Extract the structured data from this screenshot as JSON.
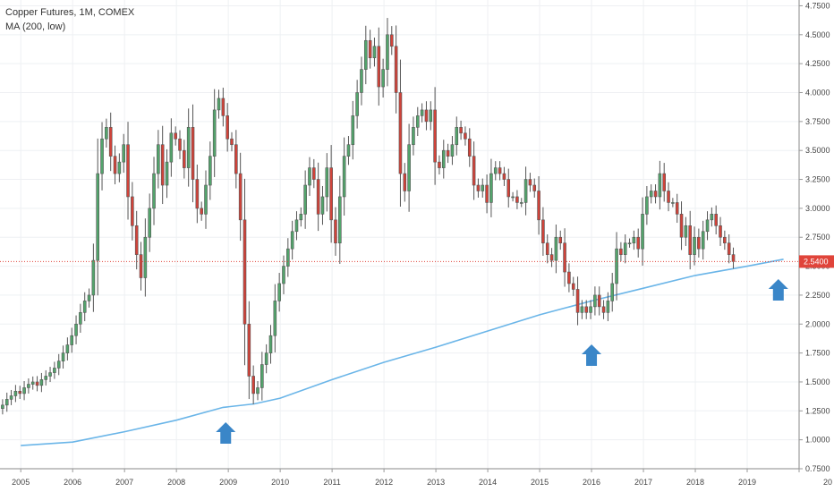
{
  "legend": {
    "symbol_line": "Copper Futures, 1M, COMEX",
    "indicator_line": "MA (200, low)"
  },
  "colors": {
    "up": "#53a46c",
    "down": "#d0433a",
    "ma": "#6ab5e8",
    "last_price_line": "#e0443a",
    "arrow": "#3a86c8",
    "grid": "#eef0f3"
  },
  "icons": [
    "up-arrow-icon",
    "up-arrow-icon",
    "up-arrow-icon"
  ],
  "chart_data": {
    "type": "candlestick",
    "title": "Copper Futures, 1M, COMEX",
    "indicator": "MA (200, low)",
    "ylim": [
      0.75,
      4.8
    ],
    "xlim": [
      2004.6,
      2020.0
    ],
    "grid": true,
    "last_price": 2.54,
    "last_price_label": "2.5400",
    "y_ticks": [
      "4.7500",
      "4.5000",
      "4.2500",
      "4.0000",
      "3.7500",
      "3.5000",
      "3.2500",
      "3.0000",
      "2.7500",
      "2.5000",
      "2.2500",
      "2.0000",
      "1.7500",
      "1.5000",
      "1.2500",
      "1.0000",
      "0.7500"
    ],
    "x_ticks": [
      "2005",
      "2006",
      "2007",
      "2008",
      "2009",
      "2010",
      "2011",
      "2012",
      "2013",
      "2014",
      "2015",
      "2016",
      "2017",
      "2018",
      "2019",
      "20"
    ],
    "arrow_dates": [
      2008.95,
      2016.0,
      2019.6
    ],
    "close_series": {
      "start": 2004.65,
      "step": 0.08333,
      "values": [
        1.3,
        1.35,
        1.38,
        1.42,
        1.4,
        1.45,
        1.48,
        1.5,
        1.47,
        1.52,
        1.55,
        1.58,
        1.62,
        1.68,
        1.75,
        1.82,
        1.9,
        2.0,
        2.1,
        2.2,
        2.25,
        2.55,
        3.3,
        3.6,
        3.7,
        3.45,
        3.3,
        3.4,
        3.55,
        3.1,
        2.85,
        2.6,
        2.4,
        2.75,
        3.0,
        3.3,
        3.55,
        3.2,
        3.4,
        3.65,
        3.6,
        3.5,
        3.35,
        3.7,
        3.25,
        3.0,
        2.95,
        3.2,
        3.45,
        3.85,
        3.95,
        3.8,
        3.6,
        3.55,
        3.3,
        2.9,
        2.0,
        1.55,
        1.4,
        1.45,
        1.65,
        1.75,
        1.9,
        2.2,
        2.35,
        2.5,
        2.65,
        2.8,
        2.9,
        2.95,
        3.2,
        3.35,
        3.25,
        2.95,
        3.1,
        3.35,
        2.9,
        2.7,
        3.1,
        3.45,
        3.55,
        3.8,
        4.0,
        4.2,
        4.45,
        4.3,
        4.4,
        4.05,
        4.2,
        4.5,
        4.4,
        4.0,
        3.3,
        3.15,
        3.55,
        3.7,
        3.8,
        3.85,
        3.75,
        3.85,
        3.4,
        3.35,
        3.5,
        3.45,
        3.55,
        3.7,
        3.65,
        3.6,
        3.45,
        3.2,
        3.15,
        3.2,
        3.05,
        3.3,
        3.35,
        3.3,
        3.25,
        3.1,
        3.1,
        3.05,
        3.05,
        3.25,
        3.2,
        3.15,
        2.9,
        2.7,
        2.6,
        2.55,
        2.75,
        2.7,
        2.45,
        2.35,
        2.3,
        2.1,
        2.15,
        2.1,
        2.15,
        2.25,
        2.15,
        2.1,
        2.2,
        2.35,
        2.65,
        2.6,
        2.7,
        2.7,
        2.75,
        2.65,
        2.95,
        3.1,
        3.15,
        3.1,
        3.3,
        3.15,
        3.05,
        3.05,
        2.95,
        2.75,
        2.85,
        2.6,
        2.75,
        2.65,
        2.8,
        2.9,
        2.95,
        2.85,
        2.75,
        2.7,
        2.6,
        2.54
      ]
    },
    "ma_series": {
      "x": [
        2005.0,
        2006.0,
        2007.0,
        2008.0,
        2008.9,
        2009.5,
        2010.0,
        2011.0,
        2012.0,
        2013.0,
        2014.0,
        2015.0,
        2016.0,
        2017.0,
        2018.0,
        2019.0,
        2019.7
      ],
      "y": [
        0.95,
        0.98,
        1.07,
        1.17,
        1.28,
        1.31,
        1.36,
        1.52,
        1.67,
        1.8,
        1.94,
        2.08,
        2.2,
        2.31,
        2.42,
        2.5,
        2.56
      ]
    }
  }
}
